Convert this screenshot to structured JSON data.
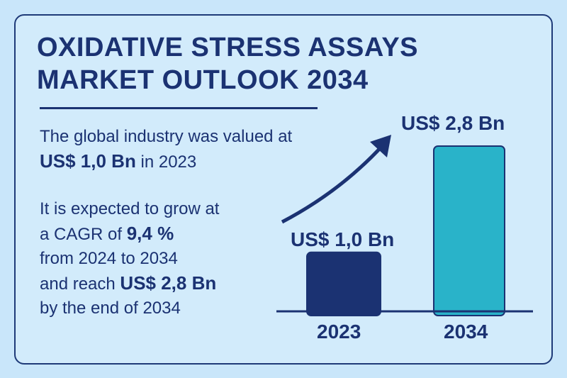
{
  "title_line1": "OXIDATIVE STRESS ASSAYS",
  "title_line2": "MARKET OUTLOOK 2034",
  "p1": {
    "a": "The global industry was valued at",
    "value": "US$ 1,0 Bn",
    "b": "in 2023"
  },
  "p2": {
    "a": "It is expected to grow at",
    "b": "a CAGR of",
    "cagr": "9,4 %",
    "c": "from 2024 to 2034",
    "d": "and reach",
    "value": "US$ 2,8 Bn",
    "e": "by the end of 2034"
  },
  "chart_data": {
    "type": "bar",
    "categories": [
      "2023",
      "2034"
    ],
    "values": [
      1.0,
      2.8
    ],
    "labels": [
      "US$ 1,0 Bn",
      "US$ 2,8 Bn"
    ],
    "unit": "US$ Bn",
    "colors": [
      "#1b3272",
      "#29b3c9"
    ]
  }
}
